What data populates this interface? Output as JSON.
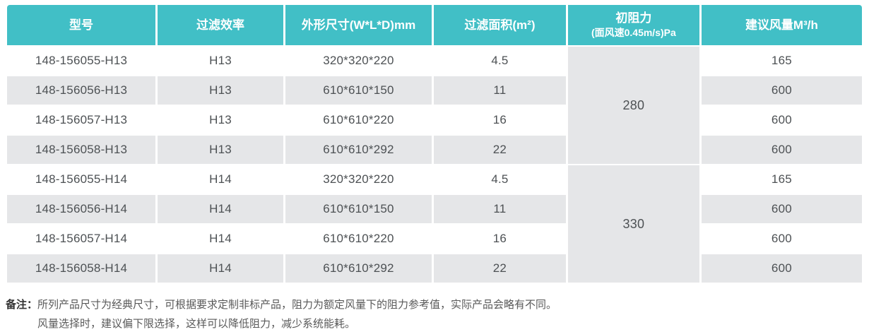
{
  "colors": {
    "header_bg": "#41BFC6",
    "header_text": "#FFFFFF",
    "row_alt_bg": "#E5E6E8",
    "row_bg": "#FFFFFF",
    "body_text": "#4D5154"
  },
  "table": {
    "headers": {
      "model": "型号",
      "efficiency": "过滤效率",
      "dimensions": "外形尺寸(W*L*D)mm",
      "area": "过滤面积(m²)",
      "resistance_title": "初阻力",
      "resistance_sub": "(面风速0.45m/s)Pa",
      "airflow": "建议风量M³/h"
    },
    "groups": [
      {
        "initial_resistance": "280",
        "rows": [
          {
            "model": "148-156055-H13",
            "efficiency": "H13",
            "dimensions": "320*320*220",
            "area": "4.5",
            "airflow": "165"
          },
          {
            "model": "148-156056-H13",
            "efficiency": "H13",
            "dimensions": "610*610*150",
            "area": "11",
            "airflow": "600"
          },
          {
            "model": "148-156057-H13",
            "efficiency": "H13",
            "dimensions": "610*610*220",
            "area": "16",
            "airflow": "600"
          },
          {
            "model": "148-156058-H13",
            "efficiency": "H13",
            "dimensions": "610*610*292",
            "area": "22",
            "airflow": "600"
          }
        ]
      },
      {
        "initial_resistance": "330",
        "rows": [
          {
            "model": "148-156055-H14",
            "efficiency": "H14",
            "dimensions": "320*320*220",
            "area": "4.5",
            "airflow": "165"
          },
          {
            "model": "148-156056-H14",
            "efficiency": "H14",
            "dimensions": "610*610*150",
            "area": "11",
            "airflow": "600"
          },
          {
            "model": "148-156057-H14",
            "efficiency": "H14",
            "dimensions": "610*610*220",
            "area": "16",
            "airflow": "600"
          },
          {
            "model": "148-156058-H14",
            "efficiency": "H14",
            "dimensions": "610*610*292",
            "area": "22",
            "airflow": "600"
          }
        ]
      }
    ]
  },
  "notes": {
    "label": "备注：",
    "line1": "所列产品尺寸为经典尺寸，可根据要求定制非标产品，阻力为额定风量下的阻力参考值，实际产品会略有不同。",
    "line2": "风量选择时，建议偏下限选择，这样可以降低阻力，减少系统能耗。"
  }
}
